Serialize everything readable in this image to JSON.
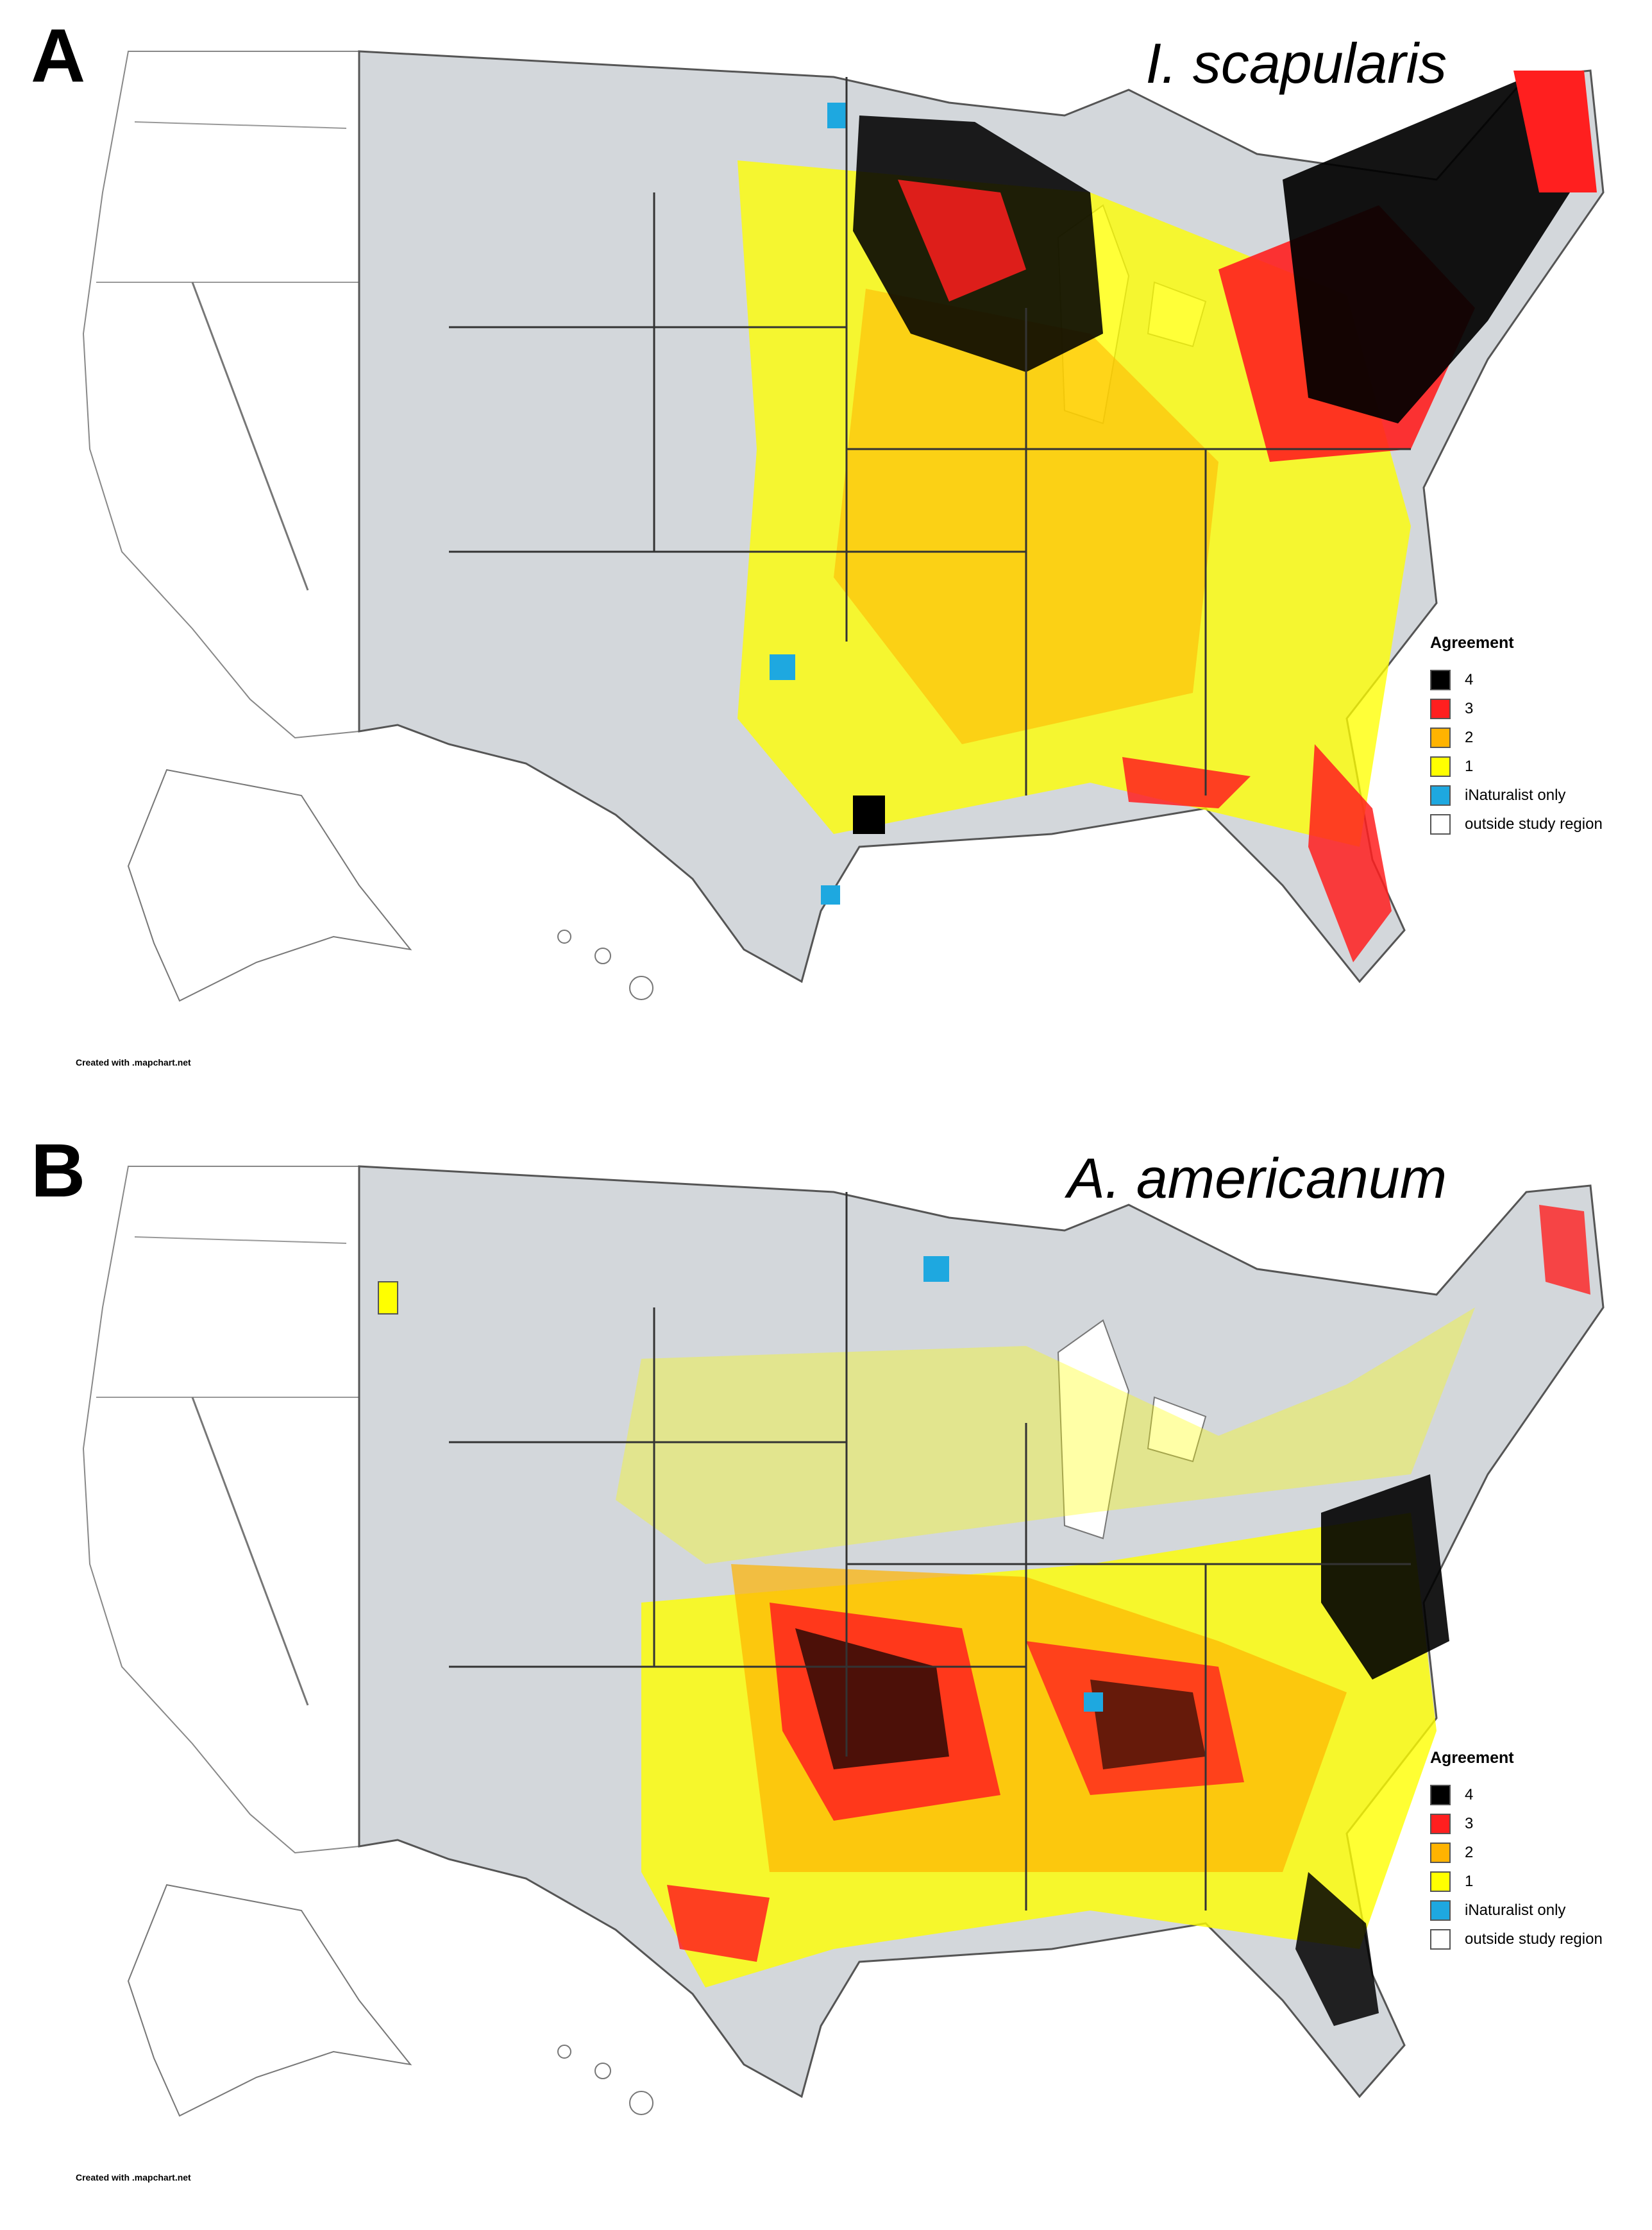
{
  "colors": {
    "c4": "#000000",
    "c3": "#ff1f1f",
    "c2": "#ffb300",
    "c1": "#ffff00",
    "inat": "#1ea8e0",
    "outside": "#ffffff",
    "study_empty": "#d3d7db",
    "outline": "#333333"
  },
  "legend": {
    "title": "Agreement",
    "items": [
      {
        "label": "4",
        "color": "#000000"
      },
      {
        "label": "3",
        "color": "#ff1f1f"
      },
      {
        "label": "2",
        "color": "#ffb300"
      },
      {
        "label": "1",
        "color": "#ffff00"
      },
      {
        "label": "iNaturalist only",
        "color": "#1ea8e0"
      },
      {
        "label": "outside study region",
        "color": "#ffffff"
      }
    ]
  },
  "panels": [
    {
      "letter": "A",
      "species": "I. scapularis",
      "credit": "Created with .mapchart.net"
    },
    {
      "letter": "B",
      "species": "A. americanum",
      "credit": "Created with .mapchart.net"
    }
  ]
}
